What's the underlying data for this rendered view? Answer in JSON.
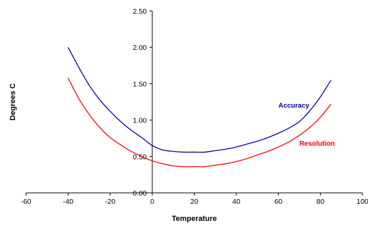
{
  "chart_data": {
    "type": "line",
    "xlabel": "Temperature",
    "ylabel": "Degrees C",
    "xlim": [
      -60,
      100
    ],
    "ylim": [
      0,
      2.5
    ],
    "x_ticks": [
      "-60",
      "-40",
      "-20",
      "0",
      "20",
      "40",
      "60",
      "80",
      "100"
    ],
    "y_ticks": [
      "0.00",
      "0.50",
      "1.00",
      "1.50",
      "2.00",
      "2.50"
    ],
    "grid": false,
    "legend": "none",
    "series": [
      {
        "name": "Accuracy",
        "color": "#0000a0",
        "x": [
          -40,
          -35,
          -30,
          -25,
          -20,
          -15,
          -10,
          -5,
          0,
          5,
          10,
          15,
          20,
          25,
          30,
          35,
          40,
          45,
          50,
          55,
          60,
          65,
          70,
          75,
          80,
          85
        ],
        "y": [
          2.0,
          1.73,
          1.48,
          1.28,
          1.12,
          0.98,
          0.86,
          0.76,
          0.65,
          0.59,
          0.57,
          0.56,
          0.56,
          0.56,
          0.58,
          0.6,
          0.63,
          0.67,
          0.71,
          0.76,
          0.82,
          0.89,
          0.98,
          1.13,
          1.32,
          1.55
        ]
      },
      {
        "name": "Resolution",
        "color": "#ff0000",
        "x": [
          -40,
          -35,
          -30,
          -25,
          -20,
          -15,
          -10,
          -5,
          0,
          5,
          10,
          15,
          20,
          25,
          30,
          35,
          40,
          45,
          50,
          55,
          60,
          65,
          70,
          75,
          80,
          85
        ],
        "y": [
          1.58,
          1.3,
          1.08,
          0.9,
          0.76,
          0.66,
          0.57,
          0.5,
          0.44,
          0.4,
          0.37,
          0.36,
          0.36,
          0.36,
          0.38,
          0.4,
          0.43,
          0.47,
          0.52,
          0.57,
          0.63,
          0.7,
          0.79,
          0.9,
          1.04,
          1.22
        ]
      }
    ],
    "annotations": [
      {
        "text": "Accuracy",
        "x": 60,
        "y": 1.17,
        "series": 0
      },
      {
        "text": "Resolution",
        "x": 70,
        "y": 0.65,
        "series": 1
      }
    ]
  }
}
